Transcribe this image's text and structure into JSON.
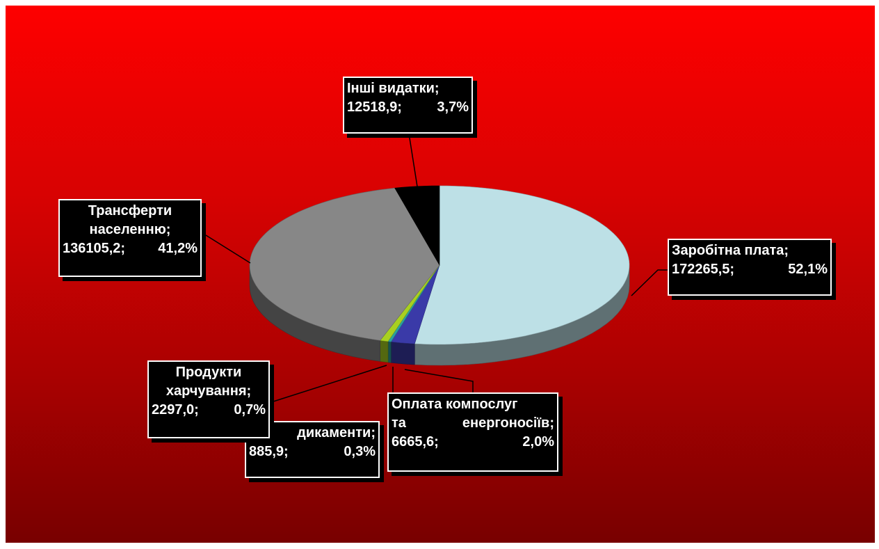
{
  "chart_data": {
    "type": "pie",
    "title": "",
    "slices": [
      {
        "name": "Заробітна плата",
        "value": 172265.5,
        "value_label": "172265,5;",
        "percent": 52.1,
        "percent_label": "52,1%",
        "color": "#bde0e6"
      },
      {
        "name": "Оплата компослуг та енергоносіїв",
        "value": 6665.6,
        "value_label": "6665,6;",
        "percent": 2.0,
        "percent_label": "2,0%",
        "color": "#3a3aa8"
      },
      {
        "name": "Медикаменти",
        "value": 885.9,
        "value_label": "885,9;",
        "percent": 0.3,
        "percent_label": "0,3%",
        "color": "#2aa0a0"
      },
      {
        "name": "Продукти харчування",
        "value": 2297.0,
        "value_label": "2297,0;",
        "percent": 0.7,
        "percent_label": "0,7%",
        "color": "#a8d020"
      },
      {
        "name": "Трансферти населенню",
        "value": 136105.2,
        "value_label": "136105,2;",
        "percent": 41.2,
        "percent_label": "41,2%",
        "color": "#878787"
      },
      {
        "name": "Інші видатки",
        "value": 12518.9,
        "value_label": "12518,9;",
        "percent": 3.7,
        "percent_label": "3,7%",
        "color": "#000000"
      }
    ],
    "labels": {
      "inshi": {
        "line1": "Інші видатки;",
        "line2a": "12518,9;",
        "line2b": "3,7%"
      },
      "transfer": {
        "line1": "Трансферти",
        "line2": "населенню;",
        "line3a": "136105,2;",
        "line3b": "41,2%"
      },
      "zarplata": {
        "line1": "Заробітна плата;",
        "line2a": "172265,5;",
        "line2b": "52,1%"
      },
      "produkty": {
        "line1": "Продукти",
        "line2": "харчування;",
        "line3a": "2297,0;",
        "line3b": "0,7%"
      },
      "medykamenty": {
        "line1": "дикаменти;",
        "line2a": "885,9;",
        "line2b": "0,3%"
      },
      "komposlugy": {
        "line1": "Оплата компослуг",
        "line2a": "та",
        "line2b": "енергоносіїв;",
        "line3a": "6665,6;",
        "line3b": "2,0%"
      }
    },
    "legend": "none",
    "style": "3d-pie"
  }
}
